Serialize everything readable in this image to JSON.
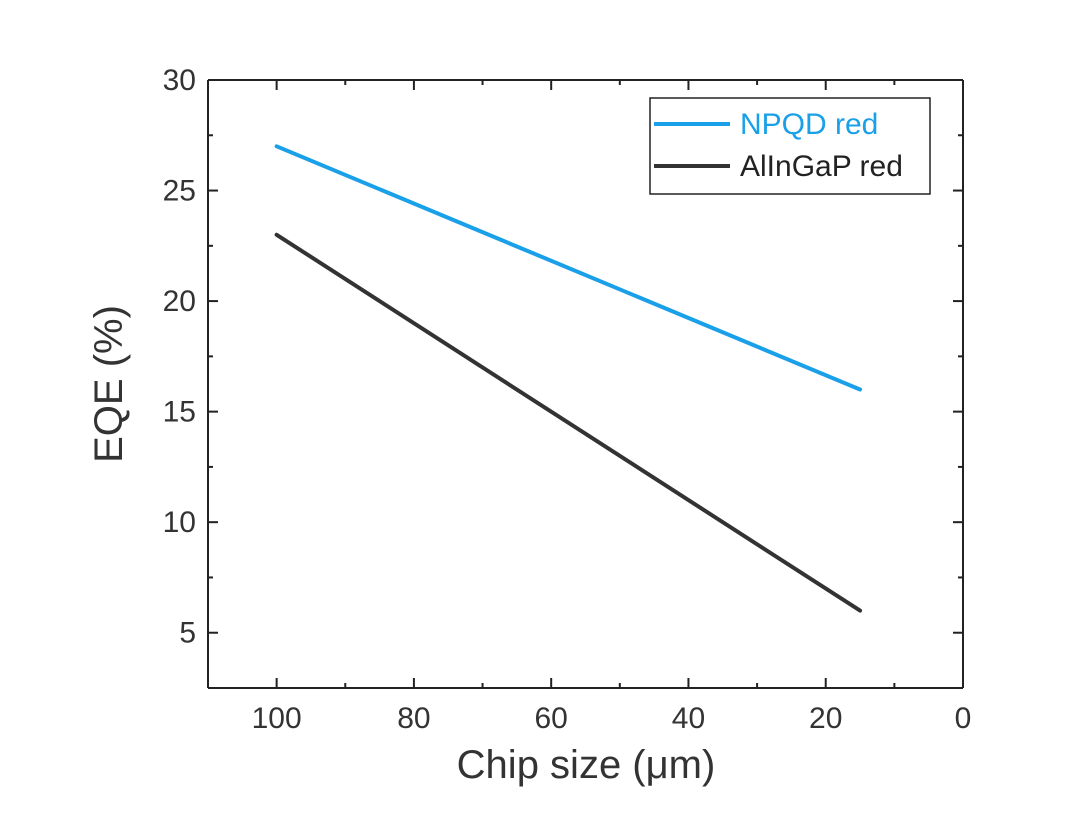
{
  "chart_data": {
    "type": "line",
    "title": "",
    "xlabel": "Chip size (μm)",
    "ylabel": "EQE (%)",
    "xlim": [
      110,
      0
    ],
    "ylim": [
      2.5,
      30
    ],
    "x_reversed": true,
    "x_ticks": [
      100,
      80,
      60,
      40,
      20,
      0
    ],
    "x_tick_labels": [
      "100",
      "80",
      "60",
      "40",
      "20",
      "0"
    ],
    "x_minor_ticks": [
      90,
      70,
      50,
      30,
      10
    ],
    "y_ticks": [
      5,
      10,
      15,
      20,
      25,
      30
    ],
    "y_tick_labels": [
      "5",
      "10",
      "15",
      "20",
      "25",
      "30"
    ],
    "y_minor_ticks": [
      7.5,
      12.5,
      17.5,
      22.5,
      27.5
    ],
    "grid": false,
    "legend_position": "top-right",
    "series": [
      {
        "name": "NPQD red",
        "color": "#1aa0e8",
        "text_color": "#1aa0e8",
        "x": [
          100,
          15
        ],
        "y": [
          27,
          16
        ]
      },
      {
        "name": "AlInGaP red",
        "color": "#333333",
        "text_color": "#222222",
        "x": [
          100,
          15
        ],
        "y": [
          23,
          6
        ]
      }
    ]
  }
}
